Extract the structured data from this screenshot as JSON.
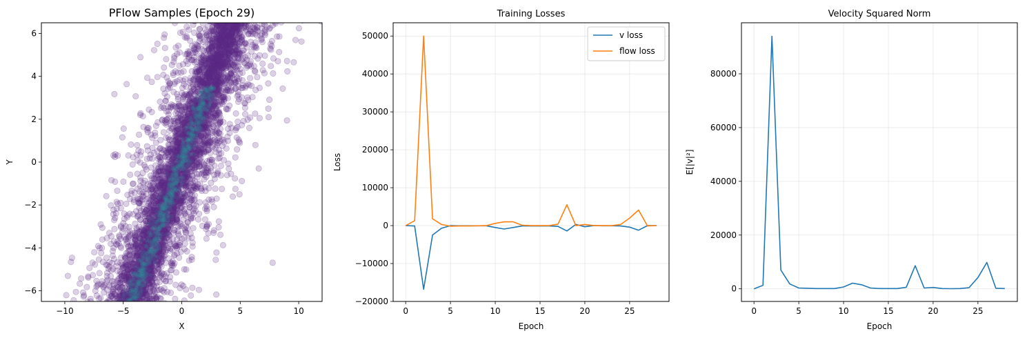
{
  "chart_data": [
    {
      "type": "scatter",
      "title": "PFlow Samples (Epoch 29)",
      "xlabel": "X",
      "ylabel": "Y",
      "xlim": [
        -12,
        12
      ],
      "ylim": [
        -6.5,
        6.5
      ],
      "xticks": [
        -10,
        -5,
        0,
        5,
        10
      ],
      "yticks": [
        -6,
        -4,
        -2,
        0,
        2,
        4,
        6
      ],
      "grid": false,
      "point_color": "#5b2a86",
      "density_color": "#2a9d9a",
      "distribution": {
        "n_points": 5000,
        "slope": 1.5,
        "intercept": 0,
        "narrow_band_spread": 0.75,
        "wide_band_spread": 3.0
      }
    },
    {
      "type": "line",
      "title": "Training Losses",
      "xlabel": "Epoch",
      "ylabel": "Loss",
      "xlim": [
        -1.4,
        29.4
      ],
      "ylim": [
        -20000,
        53500
      ],
      "xticks": [
        0,
        5,
        10,
        15,
        20,
        25
      ],
      "yticks": [
        -20000,
        -10000,
        0,
        10000,
        20000,
        30000,
        40000,
        50000
      ],
      "grid": true,
      "legend_position": "top-right",
      "x": [
        0,
        1,
        2,
        3,
        4,
        5,
        6,
        7,
        8,
        9,
        10,
        11,
        12,
        13,
        14,
        15,
        16,
        17,
        18,
        19,
        20,
        21,
        22,
        23,
        24,
        25,
        26,
        27,
        28
      ],
      "series": [
        {
          "name": "v loss",
          "color": "#1f77b4",
          "values": [
            0,
            -100,
            -16800,
            -2500,
            -700,
            0,
            -50,
            -50,
            -50,
            -50,
            -500,
            -900,
            -500,
            -100,
            -100,
            -100,
            -100,
            -200,
            -1400,
            300,
            -300,
            0,
            -50,
            -50,
            -100,
            -400,
            -1200,
            0,
            0
          ]
        },
        {
          "name": "flow loss",
          "color": "#ff7f0e",
          "values": [
            0,
            1300,
            50000,
            1800,
            300,
            -150,
            -100,
            -100,
            -50,
            0,
            600,
            1000,
            1000,
            100,
            0,
            0,
            0,
            400,
            5500,
            0,
            300,
            0,
            0,
            0,
            300,
            2000,
            4100,
            -100,
            0
          ]
        }
      ]
    },
    {
      "type": "line",
      "title": "Velocity Squared Norm",
      "xlabel": "Epoch",
      "ylabel": "E[|v|²]",
      "xlim": [
        -1.4,
        29.4
      ],
      "ylim": [
        -4700,
        99000
      ],
      "xticks": [
        0,
        5,
        10,
        15,
        20,
        25
      ],
      "yticks": [
        0,
        20000,
        40000,
        60000,
        80000
      ],
      "grid": true,
      "x": [
        0,
        1,
        2,
        3,
        4,
        5,
        6,
        7,
        8,
        9,
        10,
        11,
        12,
        13,
        14,
        15,
        16,
        17,
        18,
        19,
        20,
        21,
        22,
        23,
        24,
        25,
        26,
        27,
        28
      ],
      "series": [
        {
          "color": "#1f77b4",
          "values": [
            0,
            1300,
            94000,
            7000,
            1800,
            300,
            200,
            100,
            100,
            100,
            700,
            2100,
            1500,
            300,
            100,
            100,
            100,
            600,
            8600,
            300,
            500,
            100,
            50,
            100,
            400,
            4200,
            9800,
            200,
            100
          ]
        }
      ]
    }
  ]
}
